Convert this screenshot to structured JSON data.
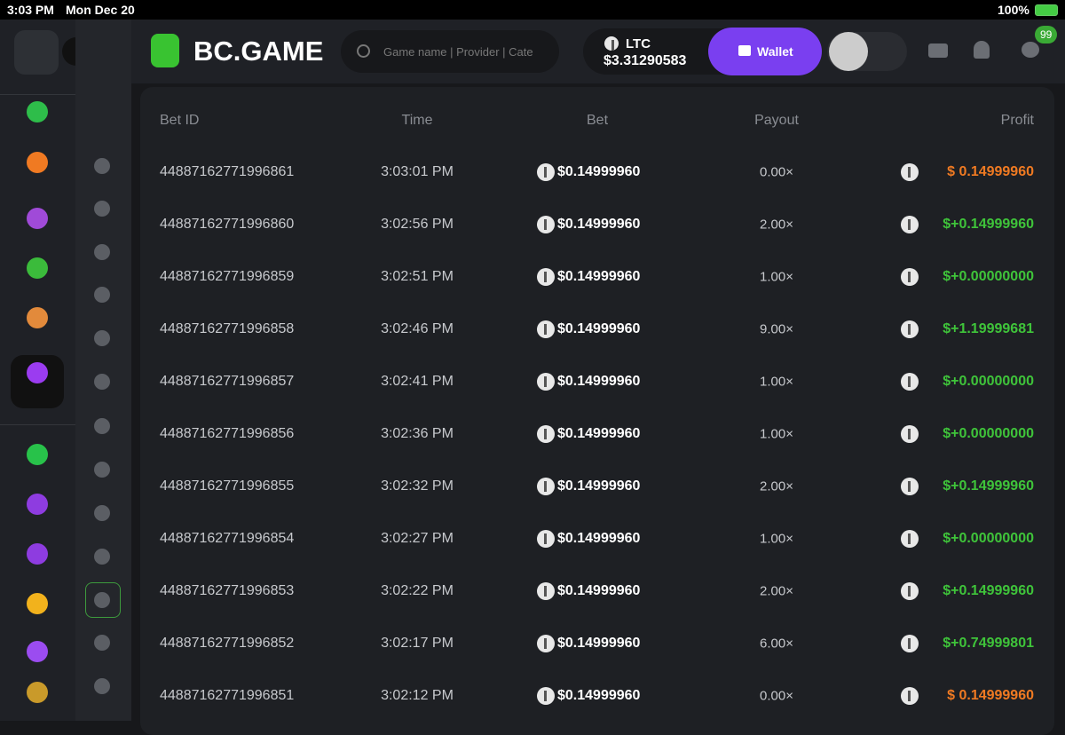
{
  "status_bar": {
    "time": "3:03 PM",
    "date": "Mon Dec 20",
    "battery": "100%"
  },
  "header": {
    "logo": "BC.GAME",
    "search_placeholder": "Game name | Provider | Cate",
    "currency": "LTC",
    "balance": "$3.31290583",
    "wallet_button": "Wallet",
    "notification_badge": "99"
  },
  "table": {
    "columns": [
      "Bet ID",
      "Time",
      "Bet",
      "Payout",
      "Profit"
    ],
    "rows": [
      [
        "44887162771996861",
        "3:03:01 PM",
        "$0.14999960",
        "0.00×",
        "$ 0.14999960"
      ],
      [
        "44887162771996860",
        "3:02:56 PM",
        "$0.14999960",
        "2.00×",
        "$+0.14999960"
      ],
      [
        "44887162771996859",
        "3:02:51 PM",
        "$0.14999960",
        "1.00×",
        "$+0.00000000"
      ],
      [
        "44887162771996858",
        "3:02:46 PM",
        "$0.14999960",
        "9.00×",
        "$+1.19999681"
      ],
      [
        "44887162771996857",
        "3:02:41 PM",
        "$0.14999960",
        "1.00×",
        "$+0.00000000"
      ],
      [
        "44887162771996856",
        "3:02:36 PM",
        "$0.14999960",
        "1.00×",
        "$+0.00000000"
      ],
      [
        "44887162771996855",
        "3:02:32 PM",
        "$0.14999960",
        "2.00×",
        "$+0.14999960"
      ],
      [
        "44887162771996854",
        "3:02:27 PM",
        "$0.14999960",
        "1.00×",
        "$+0.00000000"
      ],
      [
        "44887162771996853",
        "3:02:22 PM",
        "$0.14999960",
        "2.00×",
        "$+0.14999960"
      ],
      [
        "44887162771996852",
        "3:02:17 PM",
        "$0.14999960",
        "6.00×",
        "$+0.74999801"
      ],
      [
        "44887162771996851",
        "3:02:12 PM",
        "$0.14999960",
        "0.00×",
        "$ 0.14999960"
      ]
    ]
  }
}
